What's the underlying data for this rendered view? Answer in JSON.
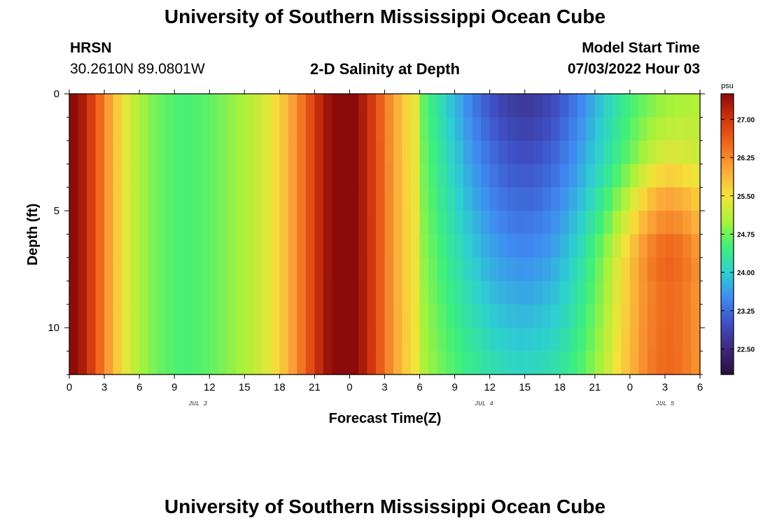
{
  "header": {
    "title": "University of Southern Mississippi Ocean Cube",
    "station": "HRSN",
    "coords": "30.2610N  89.0801W",
    "subtitle": "2-D Salinity at Depth",
    "model_start_label": "Model Start Time",
    "model_start_value": "07/03/2022 Hour 03"
  },
  "footer": {
    "title": "University of Southern Mississippi Ocean Cube"
  },
  "chart_data": {
    "type": "heatmap",
    "title": "2-D Salinity at Depth",
    "xlabel": "Forecast Time(Z)",
    "ylabel": "Depth (ft)",
    "x_tick_labels": [
      "0",
      "3",
      "6",
      "9",
      "12",
      "15",
      "18",
      "21",
      "0",
      "3",
      "6",
      "9",
      "12",
      "15",
      "18",
      "21",
      "0",
      "3",
      "6"
    ],
    "x_range_hours": [
      0,
      54
    ],
    "date_labels": [
      {
        "label": "JUL 3",
        "hour": 11
      },
      {
        "label": "JUL 4",
        "hour": 35.5
      },
      {
        "label": "JUL 5",
        "hour": 51
      }
    ],
    "y_tick_labels": [
      "0",
      "5",
      "10"
    ],
    "y_range": [
      0,
      12
    ],
    "colorbar": {
      "unit": "psu",
      "range": [
        22.0,
        27.5
      ],
      "ticks": [
        "27.00",
        "26.25",
        "25.50",
        "24.75",
        "24.00",
        "23.25",
        "22.50"
      ],
      "colors": [
        "#2a0f3f",
        "#3b2a7a",
        "#3f4fc4",
        "#3f8bf2",
        "#2dd0d0",
        "#3ef07a",
        "#a8f23a",
        "#f6e23a",
        "#fba93a",
        "#f06a1e",
        "#d2350f",
        "#8b0a0a"
      ]
    },
    "grid": false,
    "legend": "colorbar-right",
    "values_description_free": true,
    "depth_levels_ft": [
      0.5,
      1.5,
      2.5,
      3.5,
      4.5,
      5.5,
      6.5,
      7.5,
      8.5,
      9.5,
      10.5,
      11.5
    ],
    "time_columns": 72
  }
}
